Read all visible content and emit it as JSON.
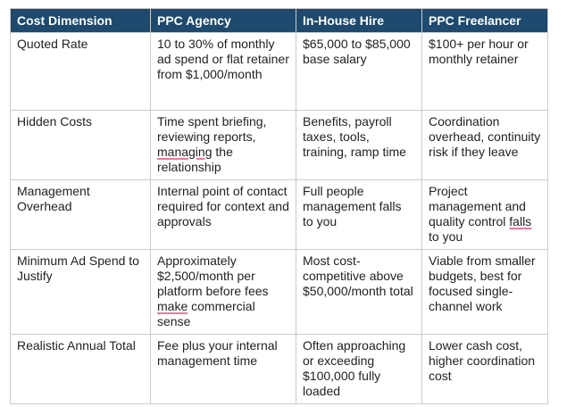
{
  "table": {
    "header_color": "#1d4a6e",
    "columns": [
      "Cost Dimension",
      "PPC Agency",
      "In-House Hire",
      "PPC Freelancer"
    ],
    "rows": [
      {
        "dimension": "Quoted Rate",
        "agency": "10 to 30% of monthly ad spend or flat retainer from $1,000/month",
        "inhouse": "$65,000 to $85,000 base salary",
        "freelancer": "$100+ per hour or monthly retainer"
      },
      {
        "dimension": "Hidden Costs",
        "agency_pre": "Time spent briefing, reviewing reports, ",
        "agency_flag": "managing",
        "agency_post": " the relationship",
        "inhouse": "Benefits, payroll taxes, tools, training, ramp time",
        "freelancer": "Coordination overhead, continuity risk if they leave"
      },
      {
        "dimension": "Management Overhead",
        "agency": "Internal point of contact required for context and approvals",
        "inhouse": "Full people management falls to you",
        "freelancer_pre": "Project management and quality control ",
        "freelancer_flag": "falls",
        "freelancer_post": " to you"
      },
      {
        "dimension": "Minimum Ad Spend to Justify",
        "agency_pre": "Approximately $2,500/month per platform before fees ",
        "agency_flag": "make",
        "agency_post": " commercial sense",
        "inhouse": "Most cost-competitive above $50,000/month total",
        "freelancer": "Viable from smaller budgets, best for focused single-channel work"
      },
      {
        "dimension": "Realistic Annual Total",
        "agency": "Fee plus your internal management time",
        "inhouse": "Often approaching or exceeding $100,000 fully loaded",
        "freelancer": "Lower cash cost, higher coordination cost"
      }
    ]
  }
}
